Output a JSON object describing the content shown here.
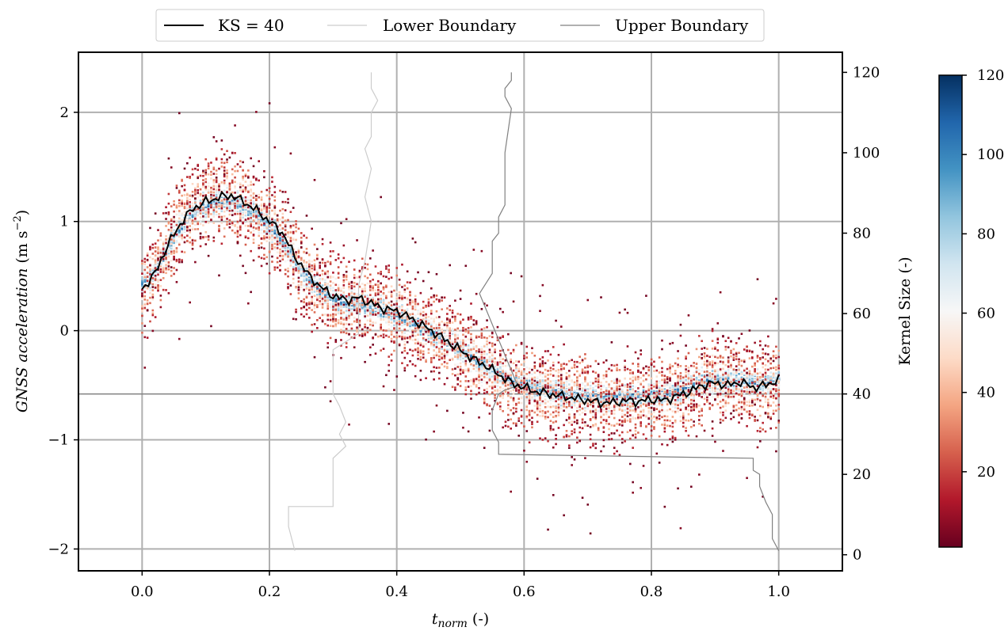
{
  "chart_data": {
    "type": "scatter",
    "title": "",
    "xlabel": "t_norm (-)",
    "xlabel_main": "t",
    "xlabel_sub": "norm",
    "xlabel_unit": "(-)",
    "ylabel_italic": "GNSS acceleration",
    "ylabel_unit_pre": "(m s",
    "ylabel_unit_exp": "−2",
    "ylabel_unit_post": ")",
    "y2label": "Kernel Size (-)",
    "xlim": [
      -0.1,
      1.1
    ],
    "ylim": [
      -2.2,
      2.55
    ],
    "y2lim": [
      -4,
      125
    ],
    "xticks": [
      0.0,
      0.2,
      0.4,
      0.6,
      0.8,
      1.0
    ],
    "xtick_labels": [
      "0.0",
      "0.2",
      "0.4",
      "0.6",
      "0.8",
      "1.0"
    ],
    "yticks": [
      -2,
      -1,
      0,
      1,
      2
    ],
    "ytick_labels": [
      "−2",
      "−1",
      "0",
      "1",
      "2"
    ],
    "y2ticks": [
      0,
      20,
      40,
      60,
      80,
      100,
      120
    ],
    "y2tick_labels": [
      "0",
      "20",
      "40",
      "60",
      "80",
      "100",
      "120"
    ],
    "grid": true,
    "reference_line_kernel_size": 40,
    "legend": {
      "placement": "top-center, outside",
      "entries": [
        {
          "label": "KS = 40",
          "color": "#000000"
        },
        {
          "label": "Lower Boundary",
          "color": "#cccccc"
        },
        {
          "label": "Upper Boundary",
          "color": "#808080"
        }
      ]
    },
    "colorbar": {
      "label": "Kernel Size (-)",
      "colormap": "RdBu",
      "range": [
        1,
        120
      ],
      "ticks": [
        20,
        40,
        60,
        80,
        100,
        120
      ],
      "tick_labels": [
        "20",
        "40",
        "60",
        "80",
        "100",
        "120"
      ],
      "stops": [
        "#67001f",
        "#b2182b",
        "#d6604d",
        "#f4a582",
        "#fddbc7",
        "#f7f7f7",
        "#d1e5f0",
        "#92c5de",
        "#4393c3",
        "#2166ac",
        "#053061"
      ]
    },
    "series": [
      {
        "name": "KS = 40",
        "x": [
          0.0,
          0.02,
          0.04,
          0.06,
          0.08,
          0.1,
          0.12,
          0.14,
          0.16,
          0.18,
          0.2,
          0.22,
          0.24,
          0.26,
          0.28,
          0.3,
          0.32,
          0.34,
          0.36,
          0.38,
          0.4,
          0.42,
          0.44,
          0.46,
          0.48,
          0.5,
          0.52,
          0.54,
          0.56,
          0.58,
          0.6,
          0.62,
          0.64,
          0.66,
          0.68,
          0.7,
          0.72,
          0.74,
          0.76,
          0.78,
          0.8,
          0.82,
          0.84,
          0.86,
          0.88,
          0.9,
          0.92,
          0.94,
          0.96,
          0.98,
          1.0
        ],
        "y": [
          0.38,
          0.52,
          0.78,
          0.98,
          1.12,
          1.18,
          1.22,
          1.24,
          1.18,
          1.1,
          1.0,
          0.9,
          0.68,
          0.52,
          0.4,
          0.32,
          0.28,
          0.3,
          0.25,
          0.2,
          0.18,
          0.12,
          0.05,
          -0.02,
          -0.1,
          -0.18,
          -0.26,
          -0.32,
          -0.4,
          -0.48,
          -0.52,
          -0.56,
          -0.58,
          -0.6,
          -0.62,
          -0.64,
          -0.66,
          -0.66,
          -0.64,
          -0.65,
          -0.63,
          -0.64,
          -0.6,
          -0.56,
          -0.5,
          -0.48,
          -0.5,
          -0.47,
          -0.52,
          -0.5,
          -0.45
        ]
      },
      {
        "name": "Lower Boundary",
        "x": [
          0.24,
          0.23,
          0.23,
          0.3,
          0.3,
          0.32,
          0.31,
          0.32,
          0.31,
          0.3,
          0.3,
          0.34,
          0.34,
          0.35,
          0.36,
          0.35,
          0.36,
          0.35,
          0.36,
          0.36,
          0.37,
          0.36,
          0.36
        ],
        "y": [
          1,
          7,
          12,
          12,
          24,
          27,
          30,
          33,
          37,
          40,
          51,
          55,
          67,
          73,
          83,
          89,
          96,
          101,
          104,
          110,
          113,
          116,
          120
        ]
      },
      {
        "name": "Upper Boundary",
        "x": [
          1.0,
          0.99,
          0.99,
          0.98,
          0.97,
          0.97,
          0.96,
          0.96,
          0.56,
          0.56,
          0.55,
          0.55,
          0.56,
          0.57,
          0.57,
          0.59,
          0.53,
          0.55,
          0.55,
          0.56,
          0.56,
          0.57,
          0.57,
          0.58,
          0.57,
          0.57,
          0.58,
          0.58
        ],
        "y": [
          1,
          4,
          10,
          13,
          17,
          20,
          21,
          24,
          25,
          28,
          31,
          36,
          40,
          41,
          41,
          42,
          65,
          70,
          78,
          80,
          84,
          87,
          100,
          111,
          114,
          116,
          118,
          120
        ]
      }
    ]
  }
}
